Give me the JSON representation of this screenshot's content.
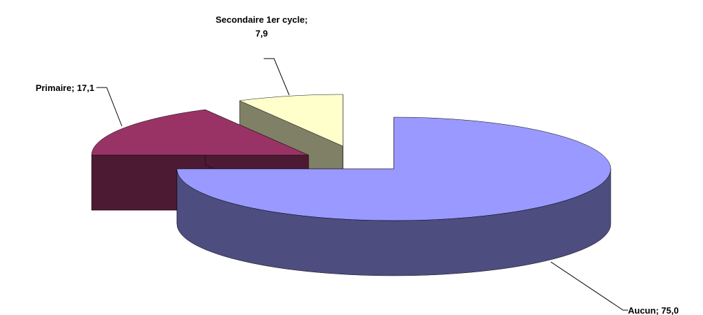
{
  "chart_data": {
    "type": "pie3d",
    "categories": [
      "Aucun",
      "Primaire",
      "Secondaire 1er cycle"
    ],
    "values": [
      75,
      17.1,
      7.9
    ],
    "value_labels": [
      "75,0",
      "17,1",
      "7,9"
    ],
    "colors": [
      "#9999ff",
      "#993366",
      "#ffffcc"
    ],
    "side_colors": [
      "#4d4d80",
      "#4d1a33",
      "#808066"
    ]
  }
}
